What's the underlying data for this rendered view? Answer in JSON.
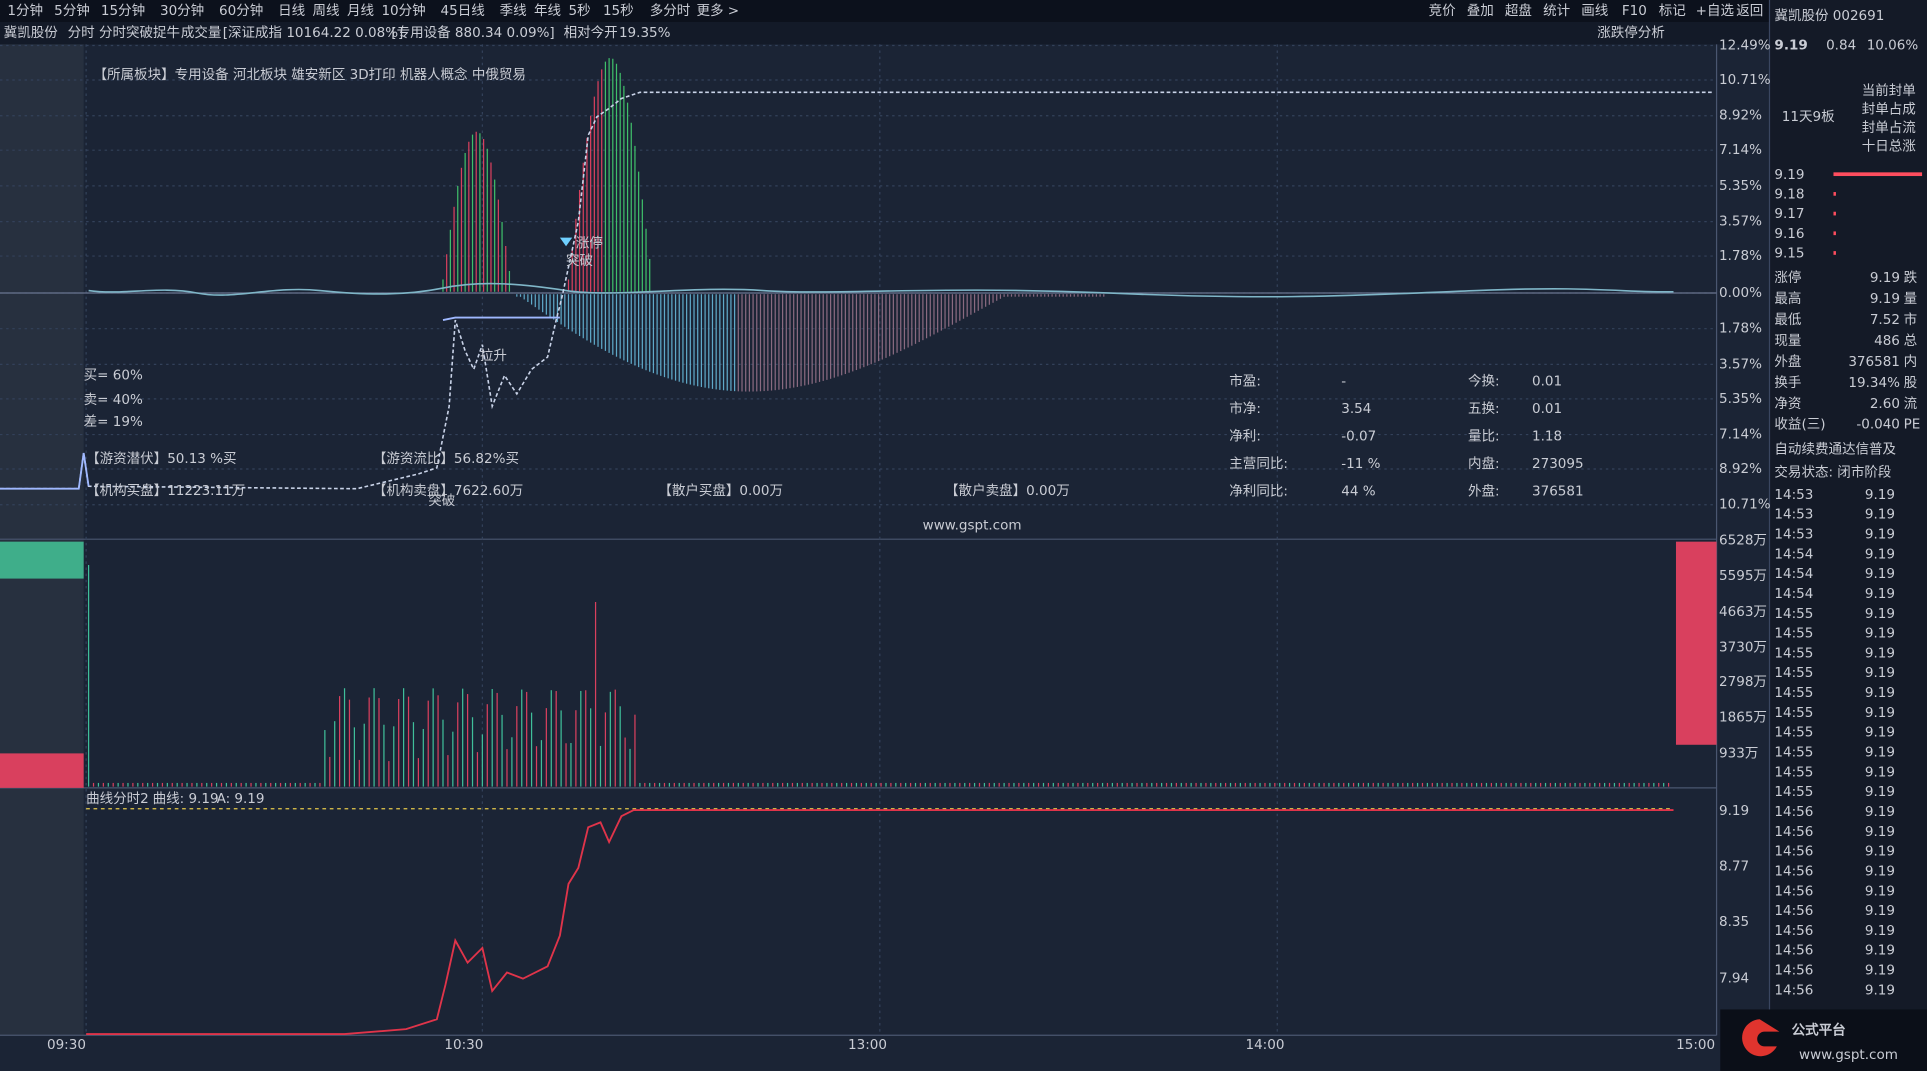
{
  "menu": {
    "left": [
      "1分钟",
      "5分钟",
      "15分钟",
      "30分钟",
      "60分钟",
      "日线",
      "周线",
      "月线",
      "10分钟",
      "45日线",
      "季线",
      "年线",
      "5秒",
      "15秒",
      "多分时",
      "更多 >"
    ],
    "right": [
      "竞价",
      "叠加",
      "超盘",
      "统计",
      "画线",
      "F10",
      "标记",
      "+自选",
      "返回"
    ]
  },
  "header": {
    "stock": "冀凯股份",
    "indicator": "分时 分时突破捉牛",
    "volume": "成交量",
    "index1": "[深证成指 10164.22 0.08%]",
    "index2": "[专用设备 880.34 0.09%]",
    "relative": "相对今开",
    "relative_value": "19.35%",
    "analysis": "涨跌停分析"
  },
  "main": {
    "sector": "【所属板块】专用设备 河北板块 雄安新区 3D打印 机器人概念 中俄贸易",
    "axis_labels": [
      "12.49%",
      "10.71%",
      "8.92%",
      "7.14%",
      "5.35%",
      "3.57%",
      "1.78%",
      "0.00%",
      "1.78%",
      "3.57%",
      "5.35%",
      "7.14%",
      "8.92%",
      "10.71%"
    ],
    "annotations": [
      "拉升",
      "涨停",
      "突破",
      "突破"
    ],
    "ratios": [
      "买= 60%",
      "卖= 40%",
      "差= 19%"
    ],
    "flows": [
      "【游资潜伏】50.13 %买",
      "【游资流比】56.82%买",
      "【机构买盘】11223.11万",
      "【机构卖盘】7622.60万",
      "【散户买盘】0.00万",
      "【散户卖盘】0.00万"
    ],
    "stats": [
      [
        "市盈:",
        "-",
        "今换:",
        "0.01"
      ],
      [
        "市净:",
        "3.54",
        "五换:",
        "0.01"
      ],
      [
        "净利:",
        "-0.07",
        "量比:",
        "1.18"
      ],
      [
        "主营同比:",
        "-11 %",
        "内盘:",
        "273095"
      ],
      [
        "净利同比:",
        "44 %",
        "外盘:",
        "376581"
      ]
    ],
    "watermark": "www.gspt.com"
  },
  "volume": {
    "axis_labels": [
      "6528万",
      "5595万",
      "4663万",
      "3730万",
      "2798万",
      "1865万",
      "933万"
    ]
  },
  "lower": {
    "title": "曲线分时2",
    "curve": "曲线: 9.19",
    "a": "A: 9.19",
    "axis_labels": [
      "9.19",
      "8.77",
      "8.35",
      "7.94"
    ]
  },
  "time_labels": [
    "09:30",
    "10:30",
    "13:00",
    "14:00",
    "15:00"
  ],
  "side": {
    "name": "冀凯股份 002691",
    "price": "9.19",
    "change": "0.84",
    "pct": "10.06%",
    "board": "11天9板",
    "seal": [
      "当前封单",
      "封单占成",
      "封单占流",
      "十日总涨"
    ],
    "book": [
      "9.19",
      "9.18",
      "9.17",
      "9.16",
      "9.15"
    ],
    "stats": [
      [
        "涨停",
        "9.19",
        "跌"
      ],
      [
        "最高",
        "9.19",
        "量"
      ],
      [
        "最低",
        "7.52",
        "市"
      ],
      [
        "现量",
        "486",
        "总"
      ],
      [
        "外盘",
        "376581",
        "内"
      ],
      [
        "换手",
        "19.34%",
        "股"
      ],
      [
        "净资",
        "2.60",
        "流"
      ],
      [
        "收益(三)",
        "-0.040",
        "PE"
      ]
    ],
    "ticker": "自动续费通达信普及",
    "status": "交易状态: 闭市阶段",
    "trades": [
      [
        "14:53",
        "9.19"
      ],
      [
        "14:53",
        "9.19"
      ],
      [
        "14:53",
        "9.19"
      ],
      [
        "14:54",
        "9.19"
      ],
      [
        "14:54",
        "9.19"
      ],
      [
        "14:54",
        "9.19"
      ],
      [
        "14:55",
        "9.19"
      ],
      [
        "14:55",
        "9.19"
      ],
      [
        "14:55",
        "9.19"
      ],
      [
        "14:55",
        "9.19"
      ],
      [
        "14:55",
        "9.19"
      ],
      [
        "14:55",
        "9.19"
      ],
      [
        "14:55",
        "9.19"
      ],
      [
        "14:55",
        "9.19"
      ],
      [
        "14:55",
        "9.19"
      ],
      [
        "14:55",
        "9.19"
      ],
      [
        "14:56",
        "9.19"
      ],
      [
        "14:56",
        "9.19"
      ],
      [
        "14:56",
        "9.19"
      ],
      [
        "14:56",
        "9.19"
      ],
      [
        "14:56",
        "9.19"
      ],
      [
        "14:56",
        "9.19"
      ],
      [
        "14:56",
        "9.19"
      ],
      [
        "14:56",
        "9.19"
      ],
      [
        "14:56",
        "9.19"
      ],
      [
        "14:56",
        "9.19"
      ]
    ]
  },
  "logo": {
    "name": "公式平台",
    "url": "www.gspt.com"
  }
}
